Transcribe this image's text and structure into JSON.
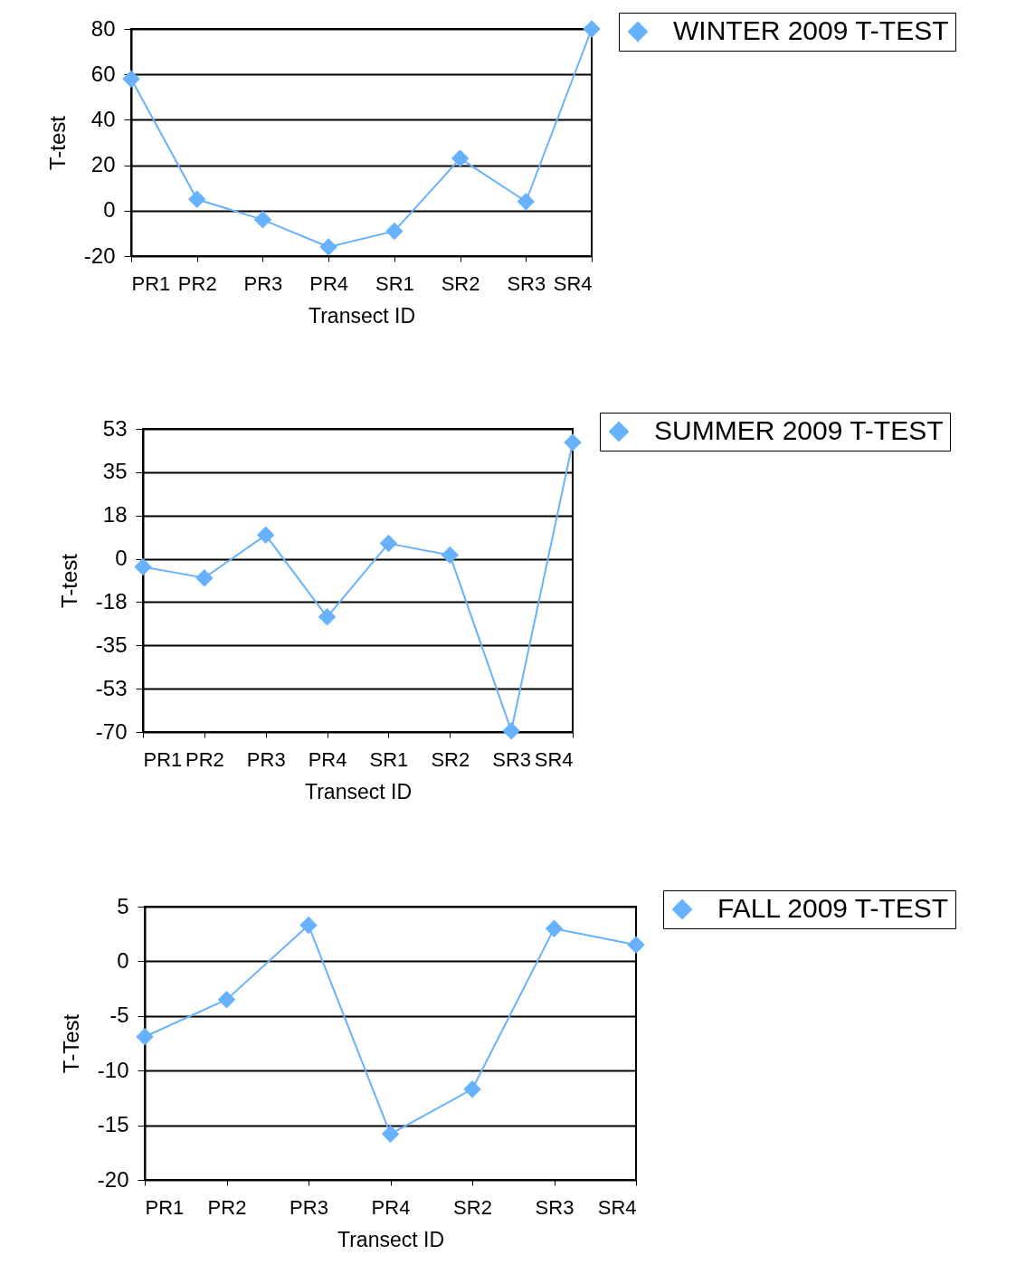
{
  "chart_data": [
    {
      "type": "line",
      "xlabel": "Transect ID",
      "ylabel": "T-test",
      "categories": [
        "PR1",
        "PR2",
        "PR3",
        "PR4",
        "SR1",
        "SR2",
        "SR3",
        "SR4"
      ],
      "series": [
        {
          "name": "WINTER 2009 T-TEST",
          "color": "#66b2ff",
          "values": [
            58,
            5,
            -4,
            -16,
            -9,
            23,
            4,
            80
          ]
        }
      ],
      "ylim": [
        -20,
        80
      ],
      "yticks": [
        -20,
        0,
        20,
        40,
        60,
        80
      ],
      "grid": "y",
      "legend": "top right",
      "marker": "diamond",
      "line_style": "solid"
    },
    {
      "type": "line",
      "xlabel": "Transect ID",
      "ylabel": "T-test",
      "categories": [
        "PR1",
        "PR2",
        "PR3",
        "PR4",
        "SR1",
        "SR2",
        "SR3",
        "SR4"
      ],
      "series": [
        {
          "name": "SUMMER 2009 T-TEST",
          "color": "#66b2ff",
          "values": [
            -3.3,
            -7.7,
            9.6,
            -23.5,
            6.2,
            1.5,
            -69.5,
            47
          ]
        }
      ],
      "ylim": [
        -70,
        52.5
      ],
      "yticks": [
        -70,
        {
          "value": -52.5,
          "label": "-53"
        },
        -35,
        {
          "value": -17.5,
          "label": "-18"
        },
        0,
        {
          "value": 17.5,
          "label": "18"
        },
        35,
        {
          "value": 52.5,
          "label": "53"
        }
      ],
      "grid": "y",
      "legend": "top right",
      "marker": "diamond",
      "line_style": "solid"
    },
    {
      "type": "line",
      "xlabel": "Transect ID",
      "ylabel": "T-Test",
      "categories": [
        "PR1",
        "PR2",
        "PR3",
        "PR4",
        "SR2",
        "SR3",
        "SR4"
      ],
      "series": [
        {
          "name": "FALL 2009 T-TEST",
          "color": "#66b2ff",
          "values": [
            -6.9,
            -3.5,
            3.3,
            -15.8,
            -11.7,
            3.0,
            1.5
          ]
        }
      ],
      "ylim": [
        -20,
        5
      ],
      "yticks": [
        -20,
        -15,
        -10,
        -5,
        0,
        5
      ],
      "grid": "y",
      "legend": "top right",
      "marker": "diamond",
      "line_style": "solid"
    }
  ]
}
